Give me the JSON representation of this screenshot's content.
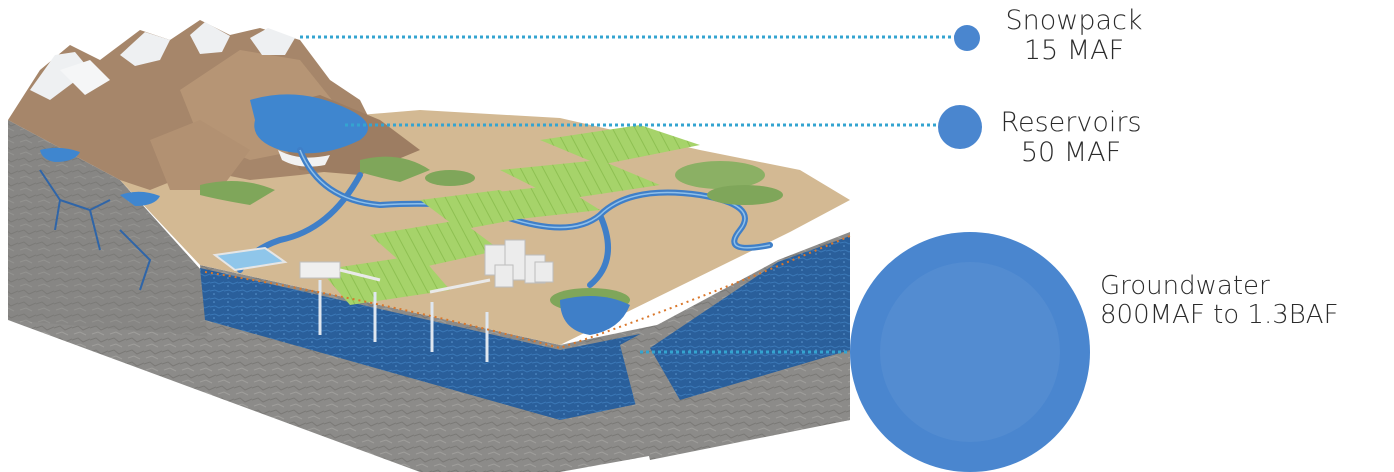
{
  "labels": {
    "snowpack": {
      "name": "Snowpack",
      "volume": "15 MAF"
    },
    "reservoirs": {
      "name": "Reservoirs",
      "volume": "50 MAF"
    },
    "groundwater": {
      "name": "Groundwater",
      "volume": "800MAF to 1.3BAF"
    }
  },
  "colors": {
    "water": "#3f7fc8",
    "bubble": "#4a86cf",
    "bubble_inner": "#5b92d3",
    "leader": "#34a4d0",
    "terrain": "#d2b892",
    "mountain": "#a9876a",
    "snow": "#f1f2f4",
    "field": "#a9d46a",
    "aquifer": "#2d63a0",
    "rock": "#8f8f8f"
  }
}
